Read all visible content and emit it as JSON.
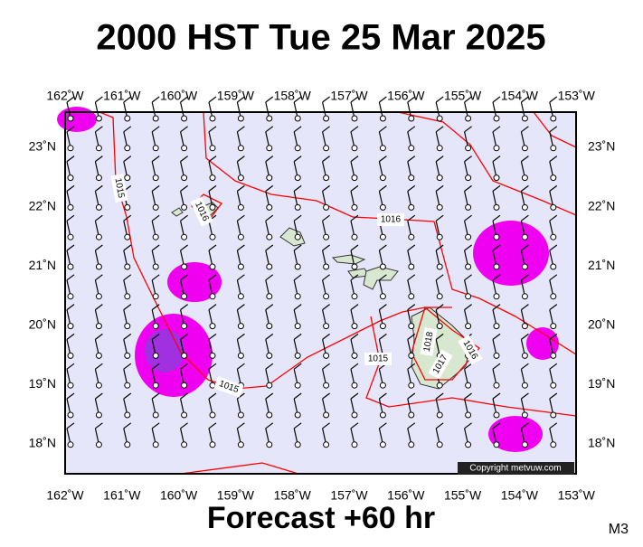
{
  "header": {
    "title": "2000 HST Tue 25 Mar 2025"
  },
  "map": {
    "lon_labels": [
      "162˚W",
      "161˚W",
      "160˚W",
      "159˚W",
      "158˚W",
      "157˚W",
      "156˚W",
      "155˚W",
      "154˚W",
      "153˚W"
    ],
    "lat_labels": [
      "23˚N",
      "22˚N",
      "21˚N",
      "20˚N",
      "19˚N",
      "18˚N"
    ],
    "isobar_labels": [
      "1015",
      "1016",
      "1016",
      "1015",
      "1015",
      "1018",
      "1017",
      "1016"
    ],
    "copyright": "Copyright metvuw.com"
  },
  "footer": {
    "forecast": "Forecast +60 hr",
    "code": "M3"
  }
}
